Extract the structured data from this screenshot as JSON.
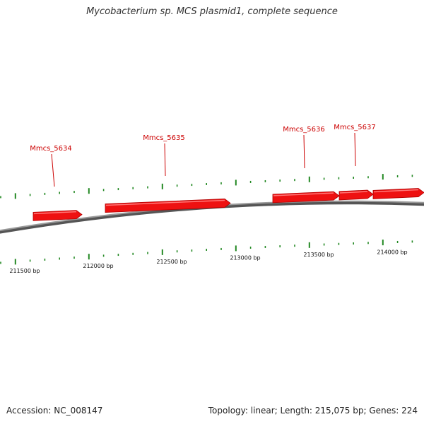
{
  "title": "Mycobacterium sp. MCS plasmid1, complete sequence",
  "footer": {
    "accession": "Accession: NC_008147",
    "summary": "Topology: linear; Length: 215,075 bp; Genes: 224"
  },
  "colors": {
    "gene": "#ee1111",
    "gene_dark": "#b00000",
    "label": "#cc0000",
    "tick": "#228822",
    "backbone": "#777777",
    "tick_label": "#111111"
  },
  "ticks": {
    "major_labels": [
      "211500 bp",
      "212000 bp",
      "212500 bp",
      "213000 bp",
      "213500 bp",
      "214000 bp"
    ]
  },
  "genes": [
    {
      "name": "Mmcs_5634"
    },
    {
      "name": "Mmcs_5635"
    },
    {
      "name": "Mmcs_5636"
    },
    {
      "name": "Mmcs_5637"
    }
  ]
}
